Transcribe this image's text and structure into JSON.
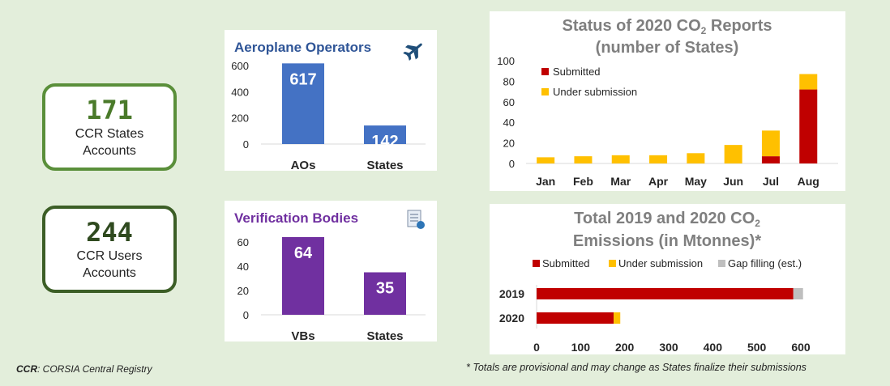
{
  "kpis": [
    {
      "value": "171",
      "label_line1": "CCR States",
      "label_line2": "Accounts"
    },
    {
      "value": "244",
      "label_line1": "CCR Users",
      "label_line2": "Accounts"
    }
  ],
  "footer": {
    "ccr_abbr": "CCR",
    "ccr_def": ": CORSIA Central Registry",
    "note": "* Totals are provisional and may change as States finalize their submissions"
  },
  "icons": {
    "plane": "airplane-icon",
    "doc": "certificate-icon"
  },
  "chart_data": [
    {
      "type": "bar",
      "title": "Aeroplane Operators",
      "categories": [
        "AOs",
        "States"
      ],
      "values": [
        617,
        142
      ],
      "ylim": [
        0,
        650
      ],
      "yticks": [
        0,
        200,
        400,
        600
      ],
      "color": "#4472c4"
    },
    {
      "type": "bar",
      "title": "Verification Bodies",
      "categories": [
        "VBs",
        "States"
      ],
      "values": [
        64,
        35
      ],
      "ylim": [
        0,
        70
      ],
      "yticks": [
        0,
        20,
        40,
        60
      ],
      "color": "#7030a0"
    },
    {
      "type": "bar",
      "stacked": true,
      "title_line1": "Status of 2020 CO",
      "title_sub": "2",
      "title_line1_end": " Reports",
      "title_line2": "(number of States)",
      "categories": [
        "Jan",
        "Feb",
        "Mar",
        "Apr",
        "May",
        "Jun",
        "Jul",
        "Aug"
      ],
      "series": [
        {
          "name": "Submitted",
          "color": "#c00000",
          "values": [
            0,
            0,
            0,
            0,
            0,
            0,
            7,
            72
          ]
        },
        {
          "name": "Under submission",
          "color": "#ffc000",
          "values": [
            6,
            7,
            8,
            8,
            10,
            18,
            25,
            15
          ]
        }
      ],
      "ylim": [
        0,
        100
      ],
      "yticks": [
        0,
        20,
        40,
        60,
        80,
        100
      ]
    },
    {
      "type": "bar",
      "orientation": "horizontal",
      "stacked": true,
      "title_line1": "Total 2019 and 2020 CO",
      "title_sub": "2",
      "title_line2": "Emissions (in Mtonnes)*",
      "categories": [
        "2019",
        "2020"
      ],
      "series": [
        {
          "name": "Submitted",
          "color": "#c00000",
          "values": [
            583,
            175
          ]
        },
        {
          "name": "Under submission",
          "color": "#ffc000",
          "values": [
            0,
            15
          ]
        },
        {
          "name": "Gap filling (est.)",
          "color": "#bfbfbf",
          "values": [
            22,
            0
          ]
        }
      ],
      "xlim": [
        0,
        600
      ],
      "xticks": [
        0,
        100,
        200,
        300,
        400,
        500,
        600
      ]
    }
  ]
}
